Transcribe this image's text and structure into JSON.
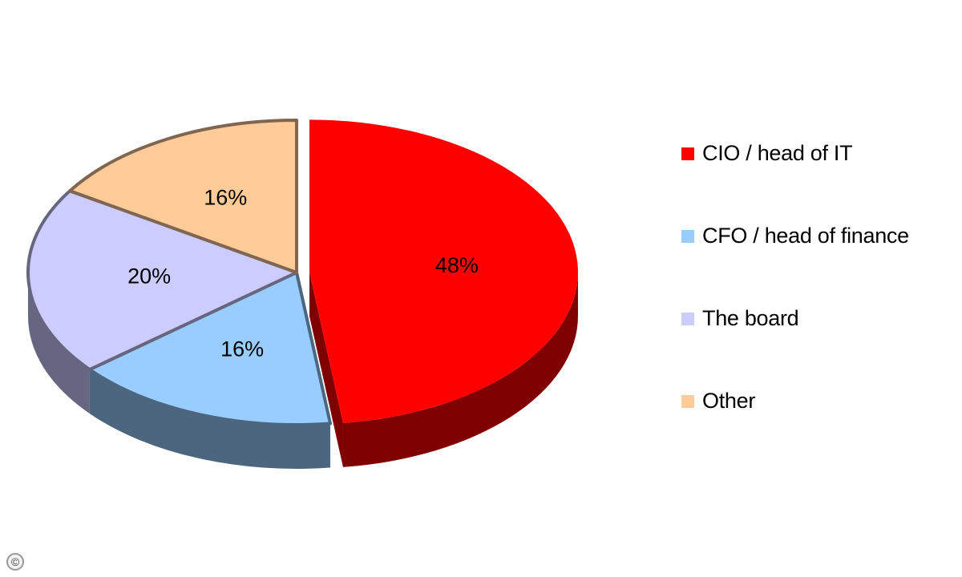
{
  "chart_data": {
    "type": "pie",
    "title": "",
    "slices": [
      {
        "label": "CIO / head of IT",
        "value": 48,
        "display": "48%",
        "color": "#ff0000",
        "side_color": "#7f0000",
        "exploded": true
      },
      {
        "label": "CFO / head of finance",
        "value": 16,
        "display": "16%",
        "color": "#99ccff",
        "side_color": "#4c6680"
      },
      {
        "label": "The board",
        "value": 20,
        "display": "20%",
        "color": "#ccccff",
        "side_color": "#666680"
      },
      {
        "label": "Other",
        "value": 16,
        "display": "16%",
        "color": "#ffcc99",
        "side_color": "#806650"
      }
    ],
    "legend_position": "right",
    "three_d": true
  },
  "copyright_symbol": "©"
}
